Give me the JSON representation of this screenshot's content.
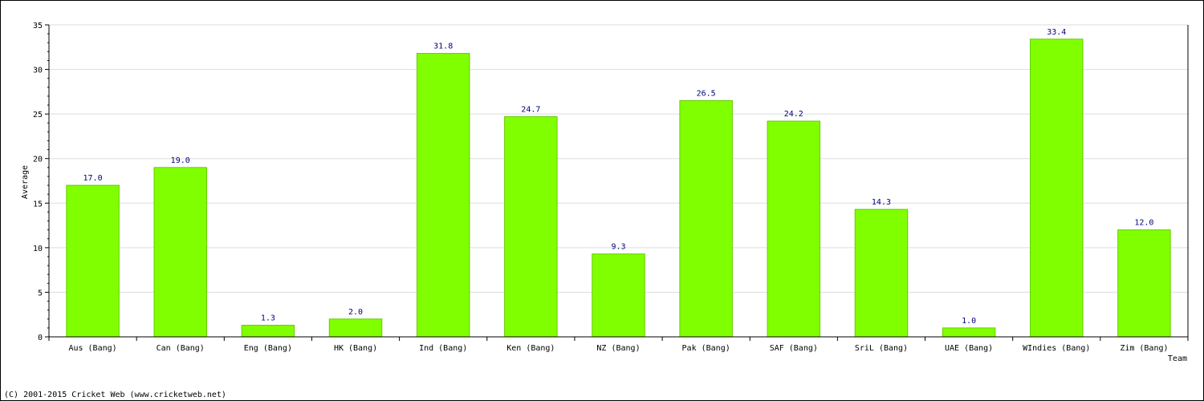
{
  "chart_data": {
    "type": "bar",
    "title": "",
    "xlabel": "Team",
    "ylabel": "Average",
    "ylim": [
      0,
      35
    ],
    "yticks": [
      0,
      5,
      10,
      15,
      20,
      25,
      30,
      35
    ],
    "grid": true,
    "categories": [
      "Aus (Bang)",
      "Can (Bang)",
      "Eng (Bang)",
      "HK (Bang)",
      "Ind (Bang)",
      "Ken (Bang)",
      "NZ (Bang)",
      "Pak (Bang)",
      "SAF (Bang)",
      "SriL (Bang)",
      "UAE (Bang)",
      "WIndies (Bang)",
      "Zim (Bang)"
    ],
    "values": [
      17.0,
      19.0,
      1.3,
      2.0,
      31.8,
      24.7,
      9.3,
      26.5,
      24.2,
      14.3,
      1.0,
      33.4,
      12.0
    ],
    "value_labels": [
      "17.0",
      "19.0",
      "1.3",
      "2.0",
      "31.8",
      "24.7",
      "9.3",
      "26.5",
      "24.2",
      "14.3",
      "1.0",
      "33.4",
      "12.0"
    ],
    "colors": {
      "bar": "#80ff00",
      "bar_edge": "#66cc00",
      "value_label": "#000080",
      "grid": "#dddddd",
      "axis": "#000000"
    }
  },
  "footer": {
    "copyright": "(C) 2001-2015 Cricket Web (www.cricketweb.net)"
  }
}
